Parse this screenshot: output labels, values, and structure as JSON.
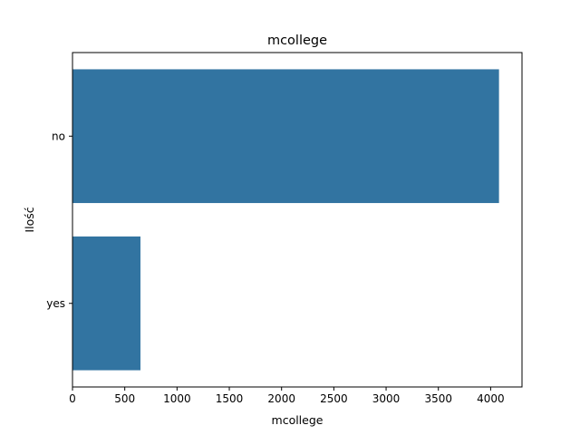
{
  "chart_data": {
    "type": "bar",
    "orientation": "horizontal",
    "title": "mcollege",
    "xlabel": "mcollege",
    "ylabel": "Ilość",
    "categories": [
      "no",
      "yes"
    ],
    "values": [
      4080,
      650
    ],
    "xlim": [
      0,
      4300
    ],
    "xticks": [
      0,
      500,
      1000,
      1500,
      2000,
      2500,
      3000,
      3500,
      4000
    ],
    "grid": false,
    "legend": "none",
    "bar_color": "#3274a1"
  }
}
